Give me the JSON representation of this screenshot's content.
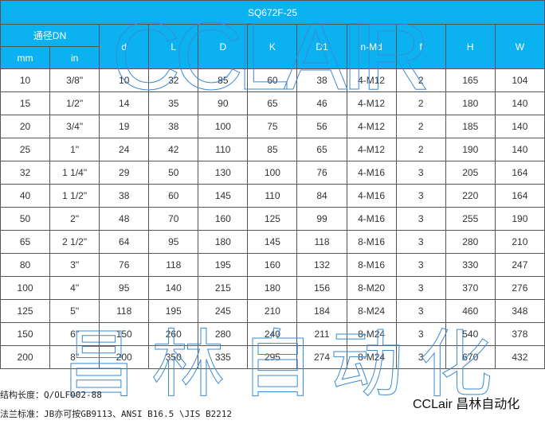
{
  "table": {
    "title": "SQ672F-25",
    "dn_label": "通径DN",
    "sub_headers": [
      "mm",
      "in"
    ],
    "headers": [
      "d",
      "L",
      "D",
      "K",
      "D1",
      "n-Md",
      "f",
      "H",
      "W"
    ],
    "rows": [
      [
        "10",
        "3/8\"",
        "10",
        "32",
        "85",
        "60",
        "38",
        "4-M12",
        "2",
        "165",
        "104"
      ],
      [
        "15",
        "1/2\"",
        "14",
        "35",
        "90",
        "65",
        "46",
        "4-M12",
        "2",
        "180",
        "140"
      ],
      [
        "20",
        "3/4\"",
        "19",
        "38",
        "100",
        "75",
        "56",
        "4-M12",
        "2",
        "185",
        "140"
      ],
      [
        "25",
        "1\"",
        "24",
        "42",
        "110",
        "85",
        "65",
        "4-M12",
        "2",
        "190",
        "140"
      ],
      [
        "32",
        "1 1/4\"",
        "29",
        "50",
        "130",
        "100",
        "76",
        "4-M16",
        "3",
        "205",
        "164"
      ],
      [
        "40",
        "1 1/2\"",
        "38",
        "60",
        "145",
        "110",
        "84",
        "4-M16",
        "3",
        "220",
        "164"
      ],
      [
        "50",
        "2\"",
        "48",
        "70",
        "160",
        "125",
        "99",
        "4-M16",
        "3",
        "255",
        "190"
      ],
      [
        "65",
        "2 1/2\"",
        "64",
        "95",
        "180",
        "145",
        "118",
        "8-M16",
        "3",
        "280",
        "210"
      ],
      [
        "80",
        "3\"",
        "76",
        "118",
        "195",
        "160",
        "132",
        "8-M16",
        "3",
        "330",
        "247"
      ],
      [
        "100",
        "4\"",
        "95",
        "140",
        "215",
        "180",
        "156",
        "8-M20",
        "3",
        "370",
        "276"
      ],
      [
        "125",
        "5\"",
        "118",
        "195",
        "245",
        "210",
        "184",
        "8-M24",
        "3",
        "460",
        "348"
      ],
      [
        "150",
        "6\"",
        "150",
        "260",
        "280",
        "240",
        "211",
        "8-M24",
        "3",
        "540",
        "378"
      ],
      [
        "200",
        "8\"",
        "200",
        "350",
        "335",
        "295",
        "274",
        "8-M24",
        "3",
        "670",
        "432"
      ]
    ]
  },
  "notes": [
    "结构长度：Q/OLF002-88",
    "法兰标准：JB亦可按GB9113、ANSI B16.5 \\JIS B2212"
  ],
  "brand": "CCLair 昌林自动化",
  "watermarks": {
    "top": "CCLAIR",
    "bottom": "昌林自动化"
  },
  "colors": {
    "header_bg": "#0cb1f0",
    "watermark": "#3a8ad6"
  }
}
